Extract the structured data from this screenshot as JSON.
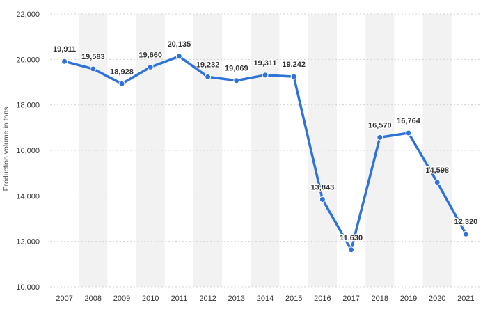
{
  "chart_data": {
    "type": "line",
    "title": "",
    "xlabel": "",
    "ylabel": "Production volume in tons",
    "categories": [
      "2007",
      "2008",
      "2009",
      "2010",
      "2011",
      "2012",
      "2013",
      "2014",
      "2015",
      "2016",
      "2017",
      "2018",
      "2019",
      "2020",
      "2021"
    ],
    "series": [
      {
        "values": [
          19911,
          19583,
          18928,
          19660,
          20135,
          19232,
          19069,
          19311,
          19242,
          13843,
          11630,
          16570,
          16764,
          14598,
          12320
        ],
        "labels": [
          "19,911",
          "19,583",
          "18,928",
          "19,660",
          "20,135",
          "19,232",
          "19,069",
          "19,311",
          "19,242",
          "13,843",
          "11,630",
          "16,570",
          "16,764",
          "14,598",
          "12,320"
        ]
      }
    ],
    "yticks": [
      "10,000",
      "12,000",
      "14,000",
      "16,000",
      "18,000",
      "20,000",
      "22,000"
    ],
    "ylim": [
      10000,
      22000
    ],
    "grid": true,
    "alternating_column_bands": true,
    "colors": {
      "line": "#2f73d8",
      "band": "#f2f2f2",
      "grid": "#d3d3d3"
    }
  }
}
